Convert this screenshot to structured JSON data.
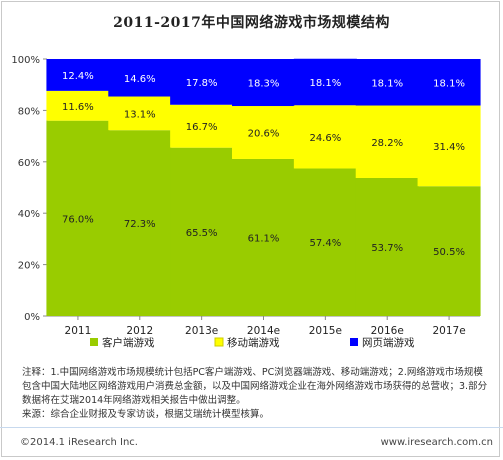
{
  "title": "2011-2017年中国网络游戏市场规模结构",
  "chart_data": {
    "type": "bar",
    "stacked": true,
    "percent": true,
    "categories": [
      "2011",
      "2012",
      "2013e",
      "2014e",
      "2015e",
      "2016e",
      "2017e"
    ],
    "series": [
      {
        "name": "客户端游戏",
        "color": "#99cc00",
        "values": [
          76.0,
          72.3,
          65.5,
          61.1,
          57.4,
          53.7,
          50.5
        ],
        "labels": [
          "76.0%",
          "72.3%",
          "65.5%",
          "61.1%",
          "57.4%",
          "53.7%",
          "50.5%"
        ]
      },
      {
        "name": "移动端游戏",
        "color": "#ffff00",
        "values": [
          11.6,
          13.1,
          16.7,
          20.6,
          24.6,
          28.2,
          31.4
        ],
        "labels": [
          "11.6%",
          "13.1%",
          "16.7%",
          "20.6%",
          "24.6%",
          "28.2%",
          "31.4%"
        ]
      },
      {
        "name": "网页端游戏",
        "color": "#0000ff",
        "values": [
          12.4,
          14.6,
          17.8,
          18.3,
          18.1,
          18.1,
          18.1
        ],
        "labels": [
          "12.4%",
          "14.6%",
          "17.8%",
          "18.3%",
          "18.1%",
          "18.1%",
          "18.1%"
        ]
      }
    ],
    "yticks": [
      "0%",
      "20%",
      "40%",
      "60%",
      "80%",
      "100%"
    ],
    "ylim": [
      0,
      100
    ],
    "legend_position": "bottom"
  },
  "notes": [
    "注释：1.中国网络游戏市场规模统计包括PC客户端游戏、PC浏览器端游戏、移动端游戏；2.网络游戏市场规模包含中国大陆地区网络游戏用户消费总金额，以及中国网络游戏企业在海外网络游戏市场获得的总营收；3.部分数据将在艾瑞2014年网络游戏相关报告中做出调整。",
    "来源：综合企业财报及专家访谈，根据艾瑞统计模型核算。"
  ],
  "footer": {
    "copyright": "©2014.1 iResearch Inc.",
    "site": "www.iresearch.com.cn"
  }
}
